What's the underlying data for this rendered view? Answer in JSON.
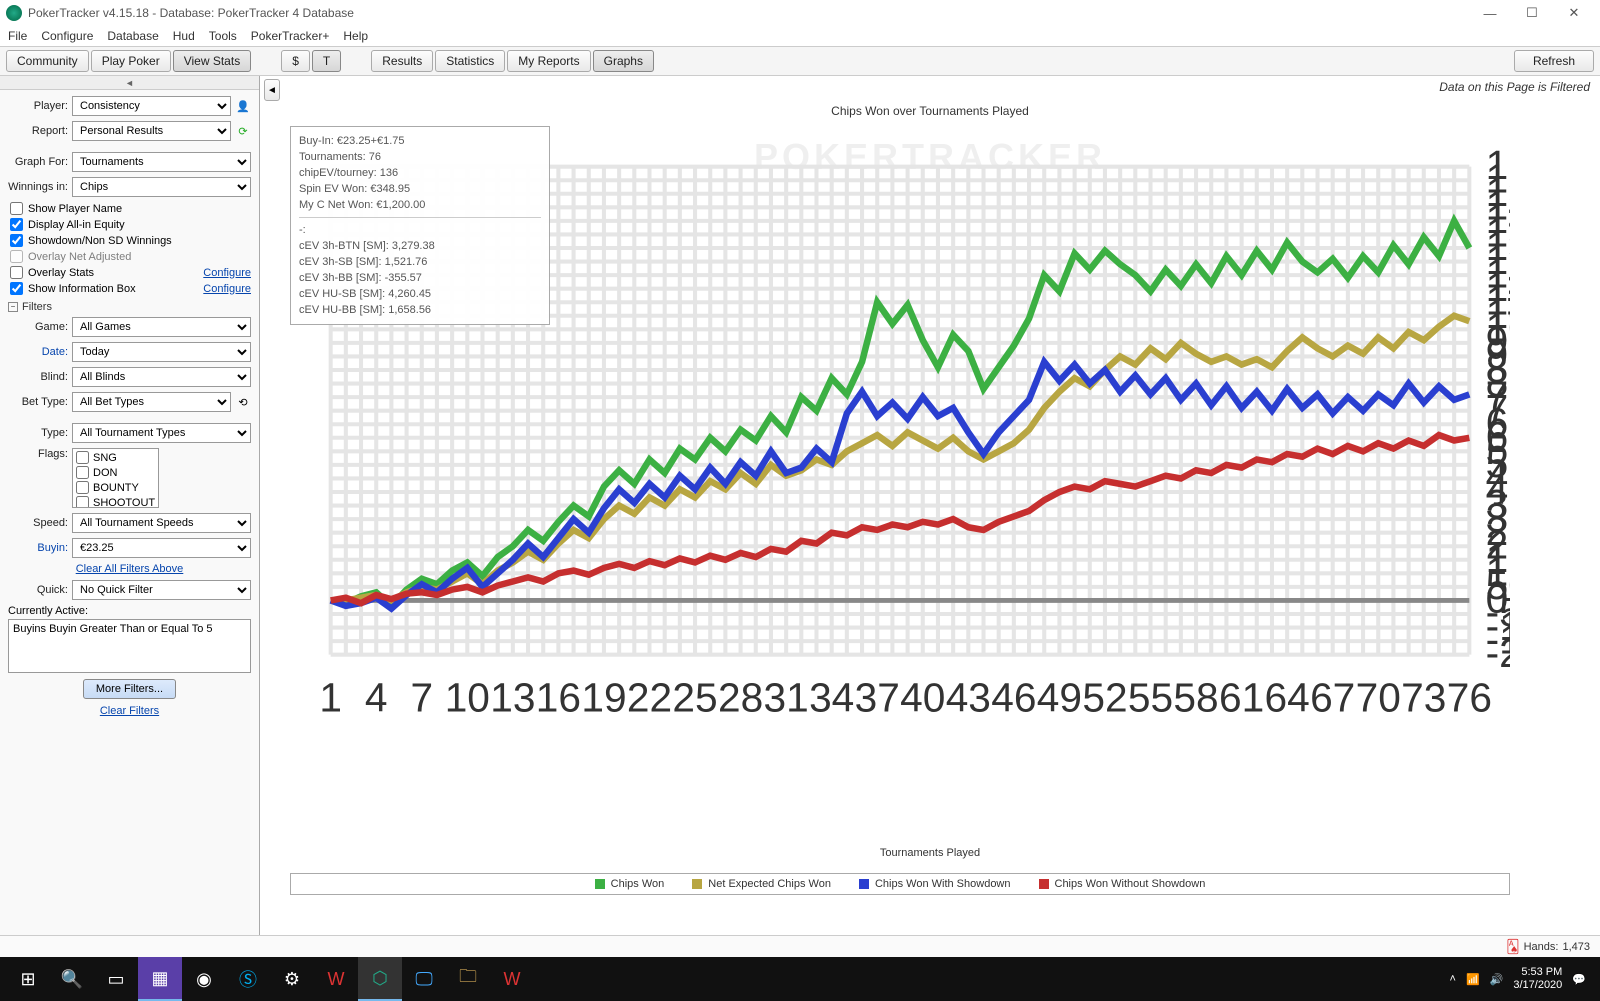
{
  "window": {
    "title": "PokerTracker v4.15.18 - Database: PokerTracker 4 Database",
    "menus": [
      "File",
      "Configure",
      "Database",
      "Hud",
      "Tools",
      "PokerTracker+",
      "Help"
    ],
    "winbtns": {
      "min": "—",
      "max": "☐",
      "close": "✕"
    }
  },
  "toolbar": {
    "left": [
      "Community",
      "Play Poker",
      "View Stats"
    ],
    "left_active": 2,
    "mid": [
      "$",
      "T"
    ],
    "mid_active": 1,
    "reports": [
      "Results",
      "Statistics",
      "My Reports",
      "Graphs"
    ],
    "reports_active": 3,
    "refresh": "Refresh"
  },
  "sidebar": {
    "player_lbl": "Player:",
    "player_val": "Consistency",
    "report_lbl": "Report:",
    "report_val": "Personal Results",
    "graph_for_lbl": "Graph For:",
    "graph_for_val": "Tournaments",
    "winnings_lbl": "Winnings in:",
    "winnings_val": "Chips",
    "cb_show_player": "Show Player Name",
    "cb_show_player_chk": false,
    "cb_allin": "Display All-in Equity",
    "cb_allin_chk": true,
    "cb_sd": "Showdown/Non SD Winnings",
    "cb_sd_chk": true,
    "cb_overlay_net": "Overlay Net Adjusted",
    "cb_overlay_net_chk": false,
    "cb_overlay_stats": "Overlay Stats",
    "cb_overlay_stats_chk": false,
    "cb_infobox": "Show Information Box",
    "cb_infobox_chk": true,
    "configure": "Configure",
    "filters_hdr": "Filters",
    "game_lbl": "Game:",
    "game_val": "All Games",
    "date_lbl": "Date:",
    "date_val": "Today",
    "blind_lbl": "Blind:",
    "blind_val": "All Blinds",
    "bet_lbl": "Bet Type:",
    "bet_val": "All Bet Types",
    "type_lbl": "Type:",
    "type_val": "All Tournament Types",
    "flags_lbl": "Flags:",
    "flags": [
      "SNG",
      "DON",
      "BOUNTY",
      "SHOOTOUT"
    ],
    "speed_lbl": "Speed:",
    "speed_val": "All Tournament Speeds",
    "buyin_lbl": "Buyin:",
    "buyin_val": "€23.25",
    "clear_above": "Clear All Filters Above",
    "quick_lbl": "Quick:",
    "quick_val": "No Quick Filter",
    "active_lbl": "Currently Active:",
    "active_txt": "Buyins Buyin Greater Than or Equal To 5",
    "more_filters": "More Filters...",
    "clear_filters": "Clear Filters"
  },
  "chart": {
    "filter_note": "Data on this Page is Filtered",
    "title": "Chips Won over Tournaments Played",
    "watermark": "POKERTRACKER",
    "xlabel": "Tournaments Played",
    "x_min": 1,
    "x_max": 76,
    "x_tick_step": 3,
    "y_min": -2000,
    "y_max": 16000,
    "y_tick_step": 500,
    "grid_minor_step_x": 1,
    "plot_bg": "#ffffff",
    "grid_color": "#e5e5e5",
    "axis_color": "#333333",
    "zero_line_color": "#888888",
    "series": [
      {
        "name": "Chips Won",
        "color": "#3cb043",
        "values": [
          0,
          -100,
          150,
          300,
          -200,
          400,
          800,
          600,
          1100,
          1400,
          900,
          1600,
          2000,
          2600,
          2200,
          2900,
          3500,
          3100,
          4200,
          4800,
          4300,
          5200,
          4700,
          5600,
          5200,
          6000,
          5500,
          6300,
          5900,
          6800,
          6200,
          7500,
          7000,
          8200,
          7600,
          8800,
          11000,
          10200,
          10900,
          9600,
          8600,
          9800,
          9200,
          7800,
          8600,
          9400,
          10400,
          12000,
          11400,
          12800,
          12200,
          12900,
          12400,
          12000,
          11400,
          12200,
          11600,
          12400,
          11700,
          12700,
          12000,
          12900,
          12200,
          13200,
          12500,
          12100,
          12600,
          11900,
          12700,
          12100,
          13100,
          12400,
          13400,
          12700,
          14000,
          13000
        ]
      },
      {
        "name": "Net Expected Chips Won",
        "color": "#b8a642",
        "values": [
          0,
          0,
          100,
          200,
          0,
          300,
          500,
          400,
          700,
          1000,
          600,
          1100,
          1400,
          1800,
          1500,
          2100,
          2600,
          2300,
          3000,
          3500,
          3200,
          3800,
          3500,
          4100,
          3800,
          4400,
          4100,
          4700,
          4300,
          5000,
          4600,
          4800,
          5200,
          5000,
          5500,
          5800,
          6100,
          5700,
          6200,
          5900,
          5600,
          6000,
          5500,
          5200,
          5500,
          5800,
          6300,
          7100,
          7700,
          8200,
          7900,
          8500,
          9000,
          8700,
          9300,
          8900,
          9500,
          9100,
          8800,
          9000,
          8700,
          8900,
          8600,
          9200,
          9700,
          9300,
          9000,
          9400,
          9100,
          9700,
          9300,
          9900,
          9600,
          10100,
          10500,
          10300
        ]
      },
      {
        "name": "Chips Won With Showdown",
        "color": "#2a3fd0",
        "values": [
          0,
          -200,
          -100,
          100,
          -300,
          200,
          600,
          300,
          800,
          1200,
          500,
          1000,
          1500,
          2100,
          1600,
          2300,
          3000,
          2500,
          3400,
          4100,
          3600,
          4300,
          3800,
          4600,
          4100,
          4900,
          4300,
          5100,
          4600,
          5500,
          4700,
          4900,
          5600,
          5100,
          6900,
          7700,
          6800,
          7300,
          6700,
          7500,
          6800,
          7100,
          6200,
          5400,
          6200,
          6800,
          7400,
          8800,
          8100,
          8700,
          8000,
          8500,
          7700,
          8300,
          7600,
          8200,
          7400,
          8000,
          7200,
          7900,
          7100,
          7700,
          7000,
          7800,
          7100,
          7600,
          6900,
          7500,
          7000,
          7600,
          7200,
          8000,
          7300,
          7900,
          7400,
          7600
        ]
      },
      {
        "name": "Chips Won Without Showdown",
        "color": "#c62f2f",
        "values": [
          0,
          100,
          -100,
          200,
          50,
          250,
          300,
          200,
          400,
          500,
          300,
          550,
          700,
          850,
          700,
          1000,
          1100,
          950,
          1200,
          1350,
          1200,
          1450,
          1300,
          1550,
          1400,
          1650,
          1500,
          1750,
          1600,
          1900,
          1800,
          2200,
          2100,
          2500,
          2400,
          2700,
          2600,
          2800,
          2700,
          2900,
          2800,
          3000,
          2700,
          2600,
          2900,
          3100,
          3300,
          3700,
          4000,
          4200,
          4100,
          4400,
          4300,
          4200,
          4400,
          4600,
          4500,
          4800,
          4700,
          5000,
          4900,
          5200,
          5100,
          5400,
          5300,
          5600,
          5400,
          5700,
          5500,
          5800,
          5600,
          5900,
          5700,
          6100,
          5900,
          6000
        ]
      }
    ],
    "info": {
      "lines1": [
        "Buy-In: €23.25+€1.75",
        "Tournaments: 76",
        "chipEV/tourney: 136",
        "Spin EV Won: €348.95",
        "My C Net Won: €1,200.00"
      ],
      "lines2": [
        "cEV 3h-BTN [SM]: 3,279.38",
        "cEV 3h-SB [SM]: 1,521.76",
        "cEV 3h-BB [SM]: -355.57",
        "cEV HU-SB [SM]: 4,260.45",
        "cEV HU-BB [SM]: 1,658.56"
      ]
    },
    "legend": [
      "Chips Won",
      "Net Expected Chips Won",
      "Chips Won With Showdown",
      "Chips Won Without Showdown"
    ]
  },
  "status": {
    "hands_lbl": "Hands:",
    "hands": "1,473"
  },
  "taskbar": {
    "time": "5:53 PM",
    "date": "3/17/2020",
    "icons": [
      "win",
      "search",
      "tasks",
      "app1",
      "chrome",
      "skype",
      "settings",
      "w",
      "pt",
      "monitor",
      "files",
      "wred"
    ]
  }
}
